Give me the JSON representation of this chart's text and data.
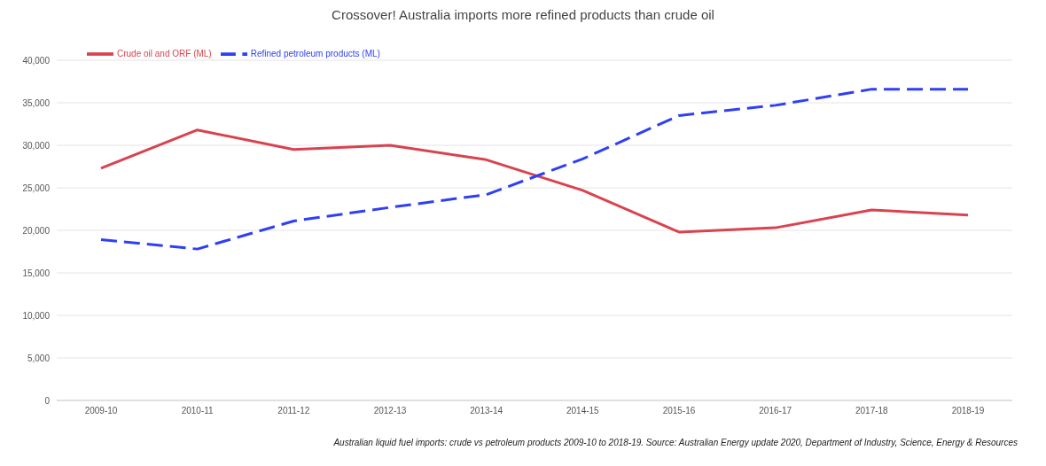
{
  "chart_data": {
    "type": "line",
    "title": "Crossover! Australia imports more refined products than crude oil",
    "categories": [
      "2009-10",
      "2010-11",
      "2011-12",
      "2012-13",
      "2013-14",
      "2014-15",
      "2015-16",
      "2016-17",
      "2017-18",
      "2018-19"
    ],
    "series": [
      {
        "name": "Crude oil and ORF (ML)",
        "color": "#d9434f",
        "line_style": "solid",
        "values": [
          27300,
          31800,
          29500,
          30000,
          28300,
          24700,
          19800,
          20300,
          22400,
          21800
        ]
      },
      {
        "name": "Refined petroleum products (ML)",
        "color": "#2f3ff5",
        "line_style": "dashed",
        "values": [
          18900,
          17800,
          21100,
          22700,
          24200,
          28400,
          33500,
          34700,
          36600,
          36600
        ]
      }
    ],
    "ylim": [
      0,
      40000
    ],
    "yticks": [
      0,
      {
        "value": 5000,
        "label": "5,000"
      },
      {
        "value": 10000,
        "label": "10,000"
      },
      {
        "value": 15000,
        "label": "15,000"
      },
      {
        "value": 20000,
        "label": "20,000"
      },
      {
        "value": 25000,
        "label": "25,000"
      },
      {
        "value": 30000,
        "label": "30,000"
      },
      {
        "value": 35000,
        "label": "35,000"
      },
      {
        "value": 40000,
        "label": "40,000"
      }
    ],
    "grid": "y",
    "legend": "top left",
    "marker": "none",
    "annotations": [
      "Australian liquid fuel imports: crude vs petroleum products 2009-10 to 2018-19. Source: Australian Energy update 2020, Department of Industry, Science, Energy & Resources"
    ]
  }
}
